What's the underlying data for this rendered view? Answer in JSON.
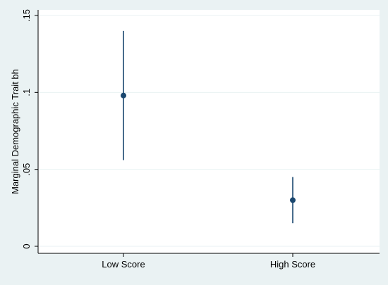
{
  "chart_data": {
    "type": "scatter",
    "subtype": "point-with-confidence-interval",
    "title": "",
    "xlabel": "",
    "ylabel": "Marginal Demographic Trait bh",
    "categories": [
      "Low Score",
      "High Score"
    ],
    "series": [
      {
        "points": [
          {
            "category": "Low Score",
            "estimate": 0.098,
            "ci_low": 0.056,
            "ci_high": 0.14
          },
          {
            "category": "High Score",
            "estimate": 0.03,
            "ci_low": 0.015,
            "ci_high": 0.045
          }
        ]
      }
    ],
    "yticks": [
      {
        "value": 0,
        "label": "0"
      },
      {
        "value": 0.05,
        "label": ".05"
      },
      {
        "value": 0.1,
        "label": ".1"
      },
      {
        "value": 0.15,
        "label": ".15"
      }
    ],
    "ylim": [
      0,
      0.15
    ],
    "grid": true,
    "colors": {
      "background": "#eaf2f3",
      "plot_background": "#ffffff",
      "marker": "#1a476f",
      "grid": "#eaf2f3",
      "axis": "#000000"
    }
  }
}
